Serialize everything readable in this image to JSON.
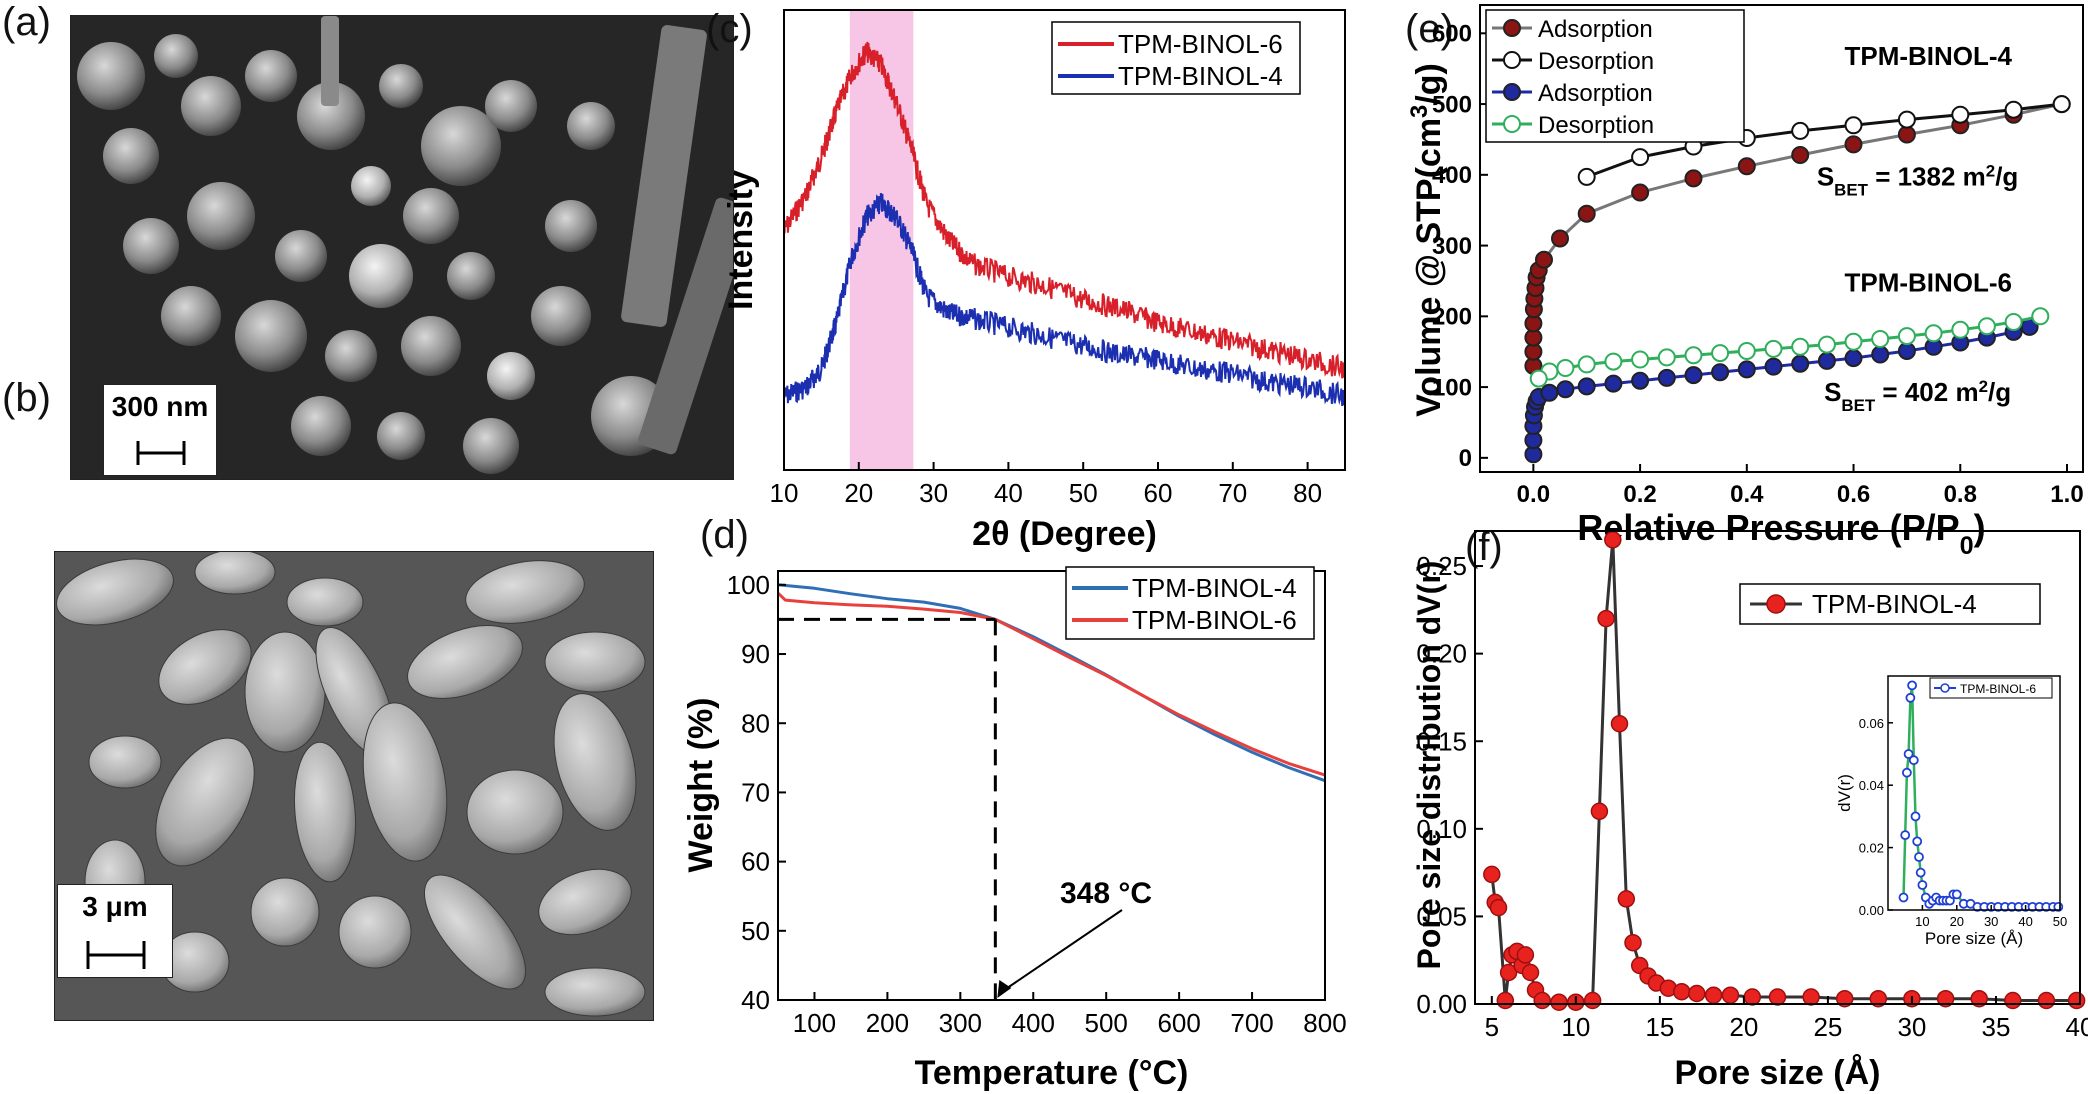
{
  "panels": {
    "a": {
      "letter": "(a)",
      "scale_label": "300 nm"
    },
    "b": {
      "letter": "(b)",
      "scale_label": "3 μm"
    }
  },
  "chart_data": [
    {
      "id": "c",
      "letter": "(c)",
      "type": "line",
      "xlabel": "2θ (Degree)",
      "ylabel": "Intensity",
      "xlim": [
        10,
        85
      ],
      "xticks": [
        10,
        20,
        30,
        40,
        50,
        60,
        70,
        80
      ],
      "yticks_shown": false,
      "highlight_band": [
        18.8,
        27.3
      ],
      "highlight_color": "#f7c6e6",
      "legend": "top-right",
      "series": [
        {
          "name": "TPM-BINOL-6",
          "color": "#d8202a",
          "x": [
            10,
            13,
            15,
            17,
            19,
            21,
            23,
            25,
            27,
            29,
            32,
            35,
            40,
            45,
            50,
            55,
            60,
            65,
            70,
            75,
            80,
            85
          ],
          "y": [
            0.52,
            0.6,
            0.68,
            0.78,
            0.86,
            0.91,
            0.88,
            0.8,
            0.7,
            0.58,
            0.5,
            0.45,
            0.42,
            0.4,
            0.37,
            0.35,
            0.32,
            0.3,
            0.28,
            0.26,
            0.24,
            0.22
          ]
        },
        {
          "name": "TPM-BINOL-4",
          "color": "#1c2fb0",
          "x": [
            10,
            13,
            15,
            17,
            19,
            21,
            23,
            25,
            27,
            29,
            32,
            35,
            40,
            45,
            50,
            55,
            60,
            65,
            70,
            75,
            80,
            85
          ],
          "y": [
            0.16,
            0.18,
            0.22,
            0.32,
            0.46,
            0.55,
            0.58,
            0.55,
            0.48,
            0.38,
            0.34,
            0.33,
            0.31,
            0.29,
            0.27,
            0.25,
            0.24,
            0.22,
            0.21,
            0.19,
            0.18,
            0.16
          ]
        }
      ]
    },
    {
      "id": "d",
      "letter": "(d)",
      "type": "line",
      "xlabel": "Temperature (°C)",
      "ylabel": "Weight (%)",
      "xlim": [
        50,
        800
      ],
      "ylim": [
        40,
        102
      ],
      "xticks": [
        100,
        200,
        300,
        400,
        500,
        600,
        700,
        800
      ],
      "yticks": [
        40,
        50,
        60,
        70,
        80,
        90,
        100
      ],
      "legend": "top-right",
      "annotation": {
        "text": "348 °C",
        "x": 348,
        "y": 95
      },
      "series": [
        {
          "name": "TPM-BINOL-4",
          "color": "#2f6fb5",
          "x": [
            50,
            100,
            150,
            200,
            250,
            300,
            348,
            400,
            450,
            500,
            550,
            600,
            650,
            700,
            750,
            800
          ],
          "y": [
            100,
            99.5,
            98.7,
            98.0,
            97.5,
            96.6,
            95.0,
            92.5,
            89.8,
            87.0,
            84.0,
            81.0,
            78.3,
            75.8,
            73.6,
            71.7
          ]
        },
        {
          "name": "TPM-BINOL-6",
          "color": "#e8403c",
          "x": [
            50,
            60,
            100,
            150,
            200,
            250,
            300,
            348,
            400,
            450,
            500,
            550,
            600,
            650,
            700,
            750,
            800
          ],
          "y": [
            98.8,
            97.8,
            97.4,
            97.1,
            96.9,
            96.5,
            96.0,
            95.0,
            92.2,
            89.5,
            86.9,
            84.0,
            81.2,
            78.7,
            76.3,
            74.2,
            72.5
          ]
        }
      ]
    },
    {
      "id": "e",
      "letter": "(e)",
      "type": "line",
      "xlabel": "Relative Pressure (P/P0)",
      "ylabel": "Volume @ STP(cm3/g)",
      "xlim": [
        -0.1,
        1.03
      ],
      "ylim": [
        -20,
        640
      ],
      "xticks": [
        0.0,
        0.2,
        0.4,
        0.6,
        0.8,
        1.0
      ],
      "yticks": [
        0,
        100,
        200,
        300,
        400,
        500,
        600
      ],
      "legend": "top-left",
      "labels": [
        {
          "text": "TPM-BINOL-4",
          "x": 0.74,
          "y": 555
        },
        {
          "text": "SBET = 1382 m2/g",
          "x": 0.72,
          "y": 385
        },
        {
          "text": "TPM-BINOL-6",
          "x": 0.74,
          "y": 235
        },
        {
          "text": "SBET = 402 m2/g",
          "x": 0.72,
          "y": 80
        }
      ],
      "series": [
        {
          "name": "Adsorption",
          "sample": "TPM-BINOL-4",
          "marker": "filled",
          "color": "#8b1414",
          "line": "#777777",
          "x": [
            0.0,
            0.0,
            0.0,
            0.0,
            0.001,
            0.002,
            0.004,
            0.006,
            0.01,
            0.02,
            0.05,
            0.1,
            0.2,
            0.3,
            0.4,
            0.5,
            0.6,
            0.7,
            0.8,
            0.9,
            0.99
          ],
          "y": [
            130,
            150,
            170,
            190,
            210,
            225,
            240,
            255,
            265,
            280,
            310,
            345,
            375,
            395,
            412,
            428,
            443,
            457,
            470,
            485,
            500
          ]
        },
        {
          "name": "Desorption",
          "sample": "TPM-BINOL-4",
          "marker": "open",
          "color": "#111111",
          "line": "#111111",
          "x": [
            0.99,
            0.9,
            0.8,
            0.7,
            0.6,
            0.5,
            0.4,
            0.3,
            0.2,
            0.1
          ],
          "y": [
            500,
            492,
            485,
            478,
            470,
            462,
            452,
            440,
            425,
            397
          ]
        },
        {
          "name": "Adsorption",
          "sample": "TPM-BINOL-6",
          "marker": "filled",
          "color": "#1f2a9e",
          "line": "#1f2a9e",
          "x": [
            0.0,
            0.0,
            0.0,
            0.001,
            0.003,
            0.006,
            0.01,
            0.03,
            0.06,
            0.1,
            0.15,
            0.2,
            0.25,
            0.3,
            0.35,
            0.4,
            0.45,
            0.5,
            0.55,
            0.6,
            0.65,
            0.7,
            0.75,
            0.8,
            0.85,
            0.9,
            0.93
          ],
          "y": [
            5,
            25,
            45,
            60,
            72,
            80,
            86,
            92,
            97,
            101,
            105,
            109,
            113,
            117,
            121,
            125,
            129,
            133,
            137,
            141,
            146,
            151,
            157,
            163,
            170,
            178,
            185
          ]
        },
        {
          "name": "Desorption",
          "sample": "TPM-BINOL-6",
          "marker": "open",
          "color": "#2fae5c",
          "line": "#2fae5c",
          "x": [
            0.95,
            0.9,
            0.85,
            0.8,
            0.75,
            0.7,
            0.65,
            0.6,
            0.55,
            0.5,
            0.45,
            0.4,
            0.35,
            0.3,
            0.25,
            0.2,
            0.15,
            0.1,
            0.06,
            0.03,
            0.01
          ],
          "y": [
            200,
            192,
            186,
            181,
            176,
            172,
            168,
            164,
            160,
            157,
            154,
            151,
            148,
            145,
            142,
            139,
            136,
            132,
            127,
            122,
            112
          ]
        }
      ]
    },
    {
      "id": "f",
      "letter": "(f)",
      "type": "line",
      "xlabel": "Pore size (Å)",
      "ylabel": "Pore size distribution dV(r)",
      "xlim": [
        4,
        40
      ],
      "ylim": [
        0,
        0.27
      ],
      "xticks": [
        5,
        10,
        15,
        20,
        25,
        30,
        35,
        40
      ],
      "yticks": [
        0.0,
        0.05,
        0.1,
        0.15,
        0.2,
        0.25
      ],
      "legend": "top-right",
      "series": [
        {
          "name": "TPM-BINOL-4",
          "color": "#e8231f",
          "line": "#333333",
          "x": [
            5.0,
            5.2,
            5.4,
            5.8,
            6.0,
            6.2,
            6.5,
            6.8,
            7.0,
            7.3,
            7.6,
            8.0,
            9.0,
            10.0,
            11.0,
            11.4,
            11.8,
            12.2,
            12.6,
            13.0,
            13.4,
            13.8,
            14.3,
            14.8,
            15.5,
            16.3,
            17.2,
            18.2,
            19.2,
            20.5,
            22,
            24,
            26,
            28,
            30,
            32,
            34,
            36,
            38,
            39.8
          ],
          "y": [
            0.074,
            0.058,
            0.055,
            0.002,
            0.018,
            0.028,
            0.03,
            0.022,
            0.028,
            0.018,
            0.008,
            0.002,
            0.001,
            0.001,
            0.002,
            0.11,
            0.22,
            0.265,
            0.16,
            0.06,
            0.035,
            0.022,
            0.016,
            0.012,
            0.009,
            0.007,
            0.006,
            0.005,
            0.005,
            0.004,
            0.004,
            0.004,
            0.003,
            0.003,
            0.003,
            0.003,
            0.003,
            0.002,
            0.002,
            0.002
          ]
        }
      ],
      "inset": {
        "xlabel": "Pore size (Å)",
        "ylabel": "dV(r)",
        "xlim": [
          0,
          50
        ],
        "ylim": [
          0,
          0.075
        ],
        "xticks": [
          10,
          20,
          30,
          40,
          50
        ],
        "yticks": [
          0.0,
          0.02,
          0.04,
          0.06
        ],
        "series": [
          {
            "name": "TPM-BINOL-6",
            "color": "#1f3fd6",
            "line": "#2fae5c",
            "x": [
              4.5,
              5,
              5.5,
              6,
              6.5,
              7,
              7.5,
              8,
              8.5,
              9,
              9.5,
              10,
              11,
              12,
              13,
              14,
              15,
              16,
              17,
              18,
              19,
              20,
              22,
              24,
              26,
              28,
              30,
              32,
              34,
              36,
              38,
              40,
              42,
              44,
              46,
              48,
              49.5
            ],
            "y": [
              0.004,
              0.024,
              0.044,
              0.05,
              0.068,
              0.072,
              0.048,
              0.03,
              0.022,
              0.017,
              0.012,
              0.008,
              0.004,
              0.002,
              0.003,
              0.004,
              0.003,
              0.003,
              0.003,
              0.003,
              0.005,
              0.005,
              0.002,
              0.002,
              0.001,
              0.001,
              0.001,
              0.001,
              0.001,
              0.001,
              0.001,
              0.001,
              0.001,
              0.001,
              0.001,
              0.001,
              0.001
            ]
          }
        ]
      }
    }
  ]
}
